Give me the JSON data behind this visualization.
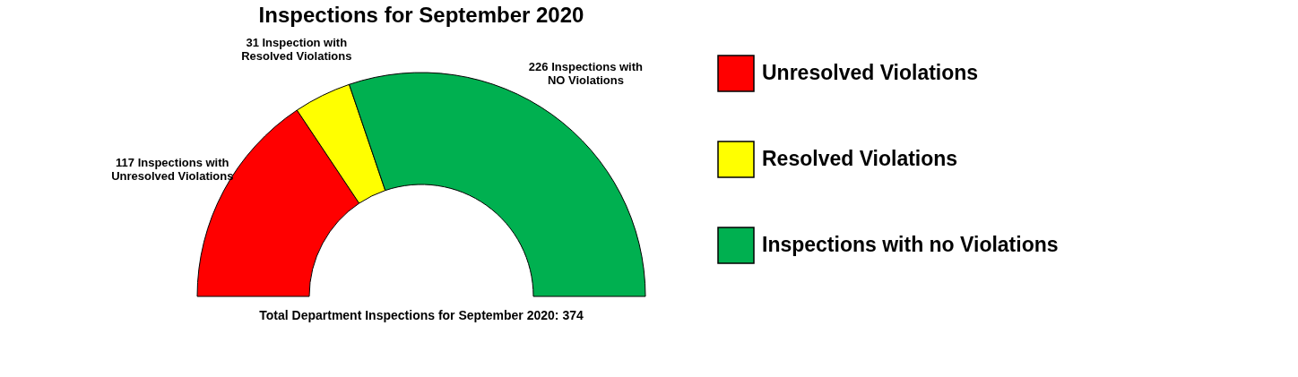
{
  "chart_data": {
    "type": "donut",
    "title": "Inspections for September 2020",
    "categories": [
      "Unresolved Violations",
      "Resolved Violations",
      "Inspections with no Violations"
    ],
    "values": [
      117,
      31,
      226
    ],
    "colors": [
      "#ff0000",
      "#ffff00",
      "#00b050"
    ],
    "value_labels": [
      "117 Inspections with Unresolved Violations",
      "31 Inspection with Resolved Violations",
      "226 Inspections with NO Violations"
    ],
    "annotations": [
      "Total Department Inspections for September 2020: 374"
    ],
    "legend": "right"
  }
}
